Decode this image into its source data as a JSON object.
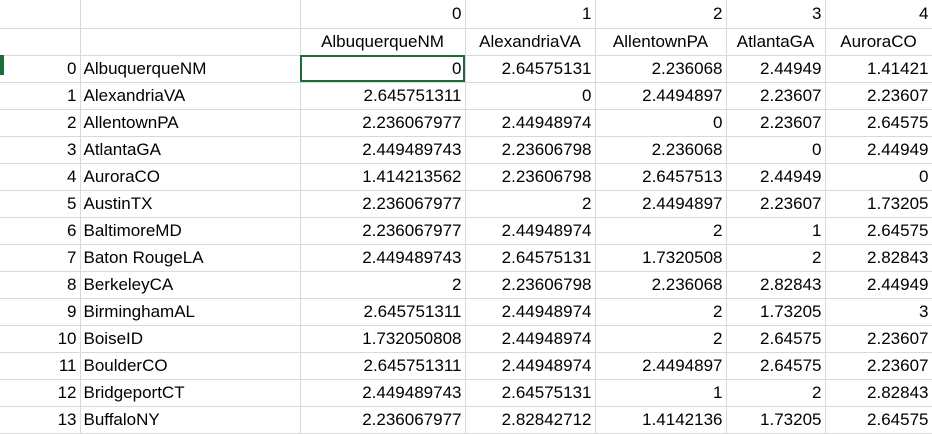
{
  "column_index_row": [
    "",
    "",
    "0",
    "1",
    "2",
    "3",
    "4"
  ],
  "header_row": [
    "",
    "",
    "AlbuquerqueNM",
    "AlexandriaVA",
    "AllentownPA",
    "AtlantaGA",
    "AuroraCO"
  ],
  "rows": [
    {
      "index": "0",
      "name": "AlbuquerqueNM",
      "values": [
        "0",
        "2.64575131",
        "2.236068",
        "2.44949",
        "1.41421"
      ]
    },
    {
      "index": "1",
      "name": "AlexandriaVA",
      "values": [
        "2.645751311",
        "0",
        "2.4494897",
        "2.23607",
        "2.23607"
      ]
    },
    {
      "index": "2",
      "name": "AllentownPA",
      "values": [
        "2.236067977",
        "2.44948974",
        "0",
        "2.23607",
        "2.64575"
      ]
    },
    {
      "index": "3",
      "name": "AtlantaGA",
      "values": [
        "2.449489743",
        "2.23606798",
        "2.236068",
        "0",
        "2.44949"
      ]
    },
    {
      "index": "4",
      "name": "AuroraCO",
      "values": [
        "1.414213562",
        "2.23606798",
        "2.6457513",
        "2.44949",
        "0"
      ]
    },
    {
      "index": "5",
      "name": "AustinTX",
      "values": [
        "2.236067977",
        "2",
        "2.4494897",
        "2.23607",
        "1.73205"
      ]
    },
    {
      "index": "6",
      "name": "BaltimoreMD",
      "values": [
        "2.236067977",
        "2.44948974",
        "2",
        "1",
        "2.64575"
      ]
    },
    {
      "index": "7",
      "name": "Baton RougeLA",
      "values": [
        "2.449489743",
        "2.64575131",
        "1.7320508",
        "2",
        "2.82843"
      ]
    },
    {
      "index": "8",
      "name": "BerkeleyCA",
      "values": [
        "2",
        "2.23606798",
        "2.236068",
        "2.82843",
        "2.44949"
      ]
    },
    {
      "index": "9",
      "name": "BirminghamAL",
      "values": [
        "2.645751311",
        "2.44948974",
        "2",
        "1.73205",
        "3"
      ]
    },
    {
      "index": "10",
      "name": "BoiseID",
      "values": [
        "1.732050808",
        "2.44948974",
        "2",
        "2.64575",
        "2.23607"
      ]
    },
    {
      "index": "11",
      "name": "BoulderCO",
      "values": [
        "2.645751311",
        "2.44948974",
        "2.4494897",
        "2.64575",
        "2.23607"
      ]
    },
    {
      "index": "12",
      "name": "BridgeportCT",
      "values": [
        "2.449489743",
        "2.64575131",
        "1",
        "2",
        "2.82843"
      ]
    },
    {
      "index": "13",
      "name": "BuffaloNY",
      "values": [
        "2.236067977",
        "2.82842712",
        "1.4142136",
        "1.73205",
        "2.64575"
      ]
    }
  ],
  "colors": {
    "gridline": "#d9d9d9",
    "selection": "#1d6b3a"
  }
}
